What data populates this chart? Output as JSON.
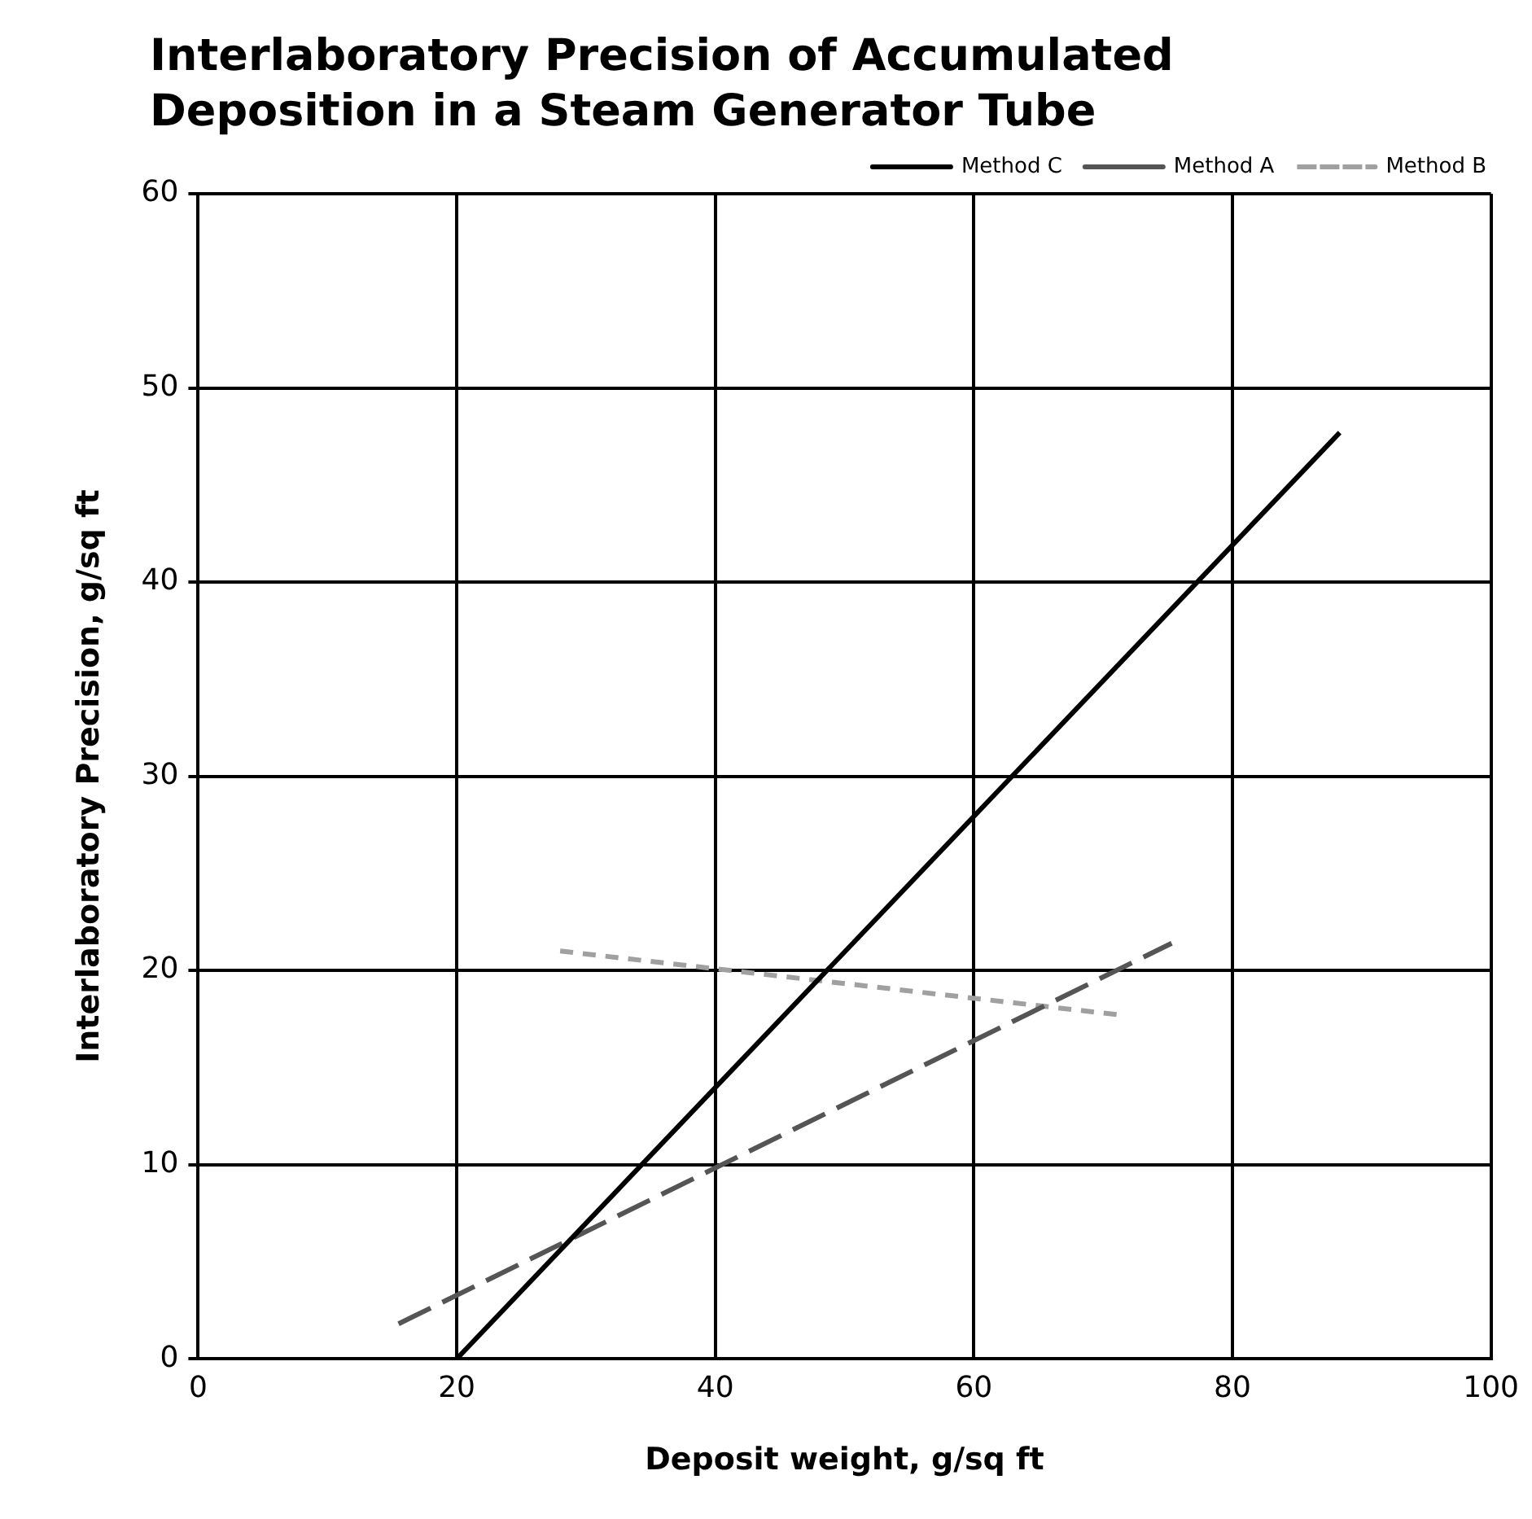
{
  "chart_data": {
    "type": "line",
    "title": "Interlaboratory Precision of Accumulated\nDeposition in a Steam Generator Tube",
    "xlabel": "Deposit weight, g/sq ft",
    "ylabel": "Interlaboratory Precision, g/sq ft",
    "xlim": [
      0,
      100
    ],
    "xticks": [
      0,
      20,
      40,
      60,
      80,
      100
    ],
    "ylim": [
      0,
      60
    ],
    "yticks": [
      0,
      10,
      20,
      30,
      40,
      50,
      60
    ],
    "grid": true,
    "legend": "top right",
    "marker": "none",
    "series": [
      {
        "name": "Method C",
        "color": "#000000",
        "line_style": "solid",
        "x": [
          20,
          88.3
        ],
        "values": [
          0,
          47.7
        ]
      },
      {
        "name": "Method A",
        "color": "#555555",
        "line_style": "dashed",
        "x": [
          15.5,
          75.3
        ],
        "values": [
          1.8,
          21.4
        ]
      },
      {
        "name": "Method B",
        "color": "#a0a0a0",
        "line_style": "dotted",
        "x": [
          28,
          71.4
        ],
        "values": [
          21,
          17.7
        ]
      }
    ]
  }
}
